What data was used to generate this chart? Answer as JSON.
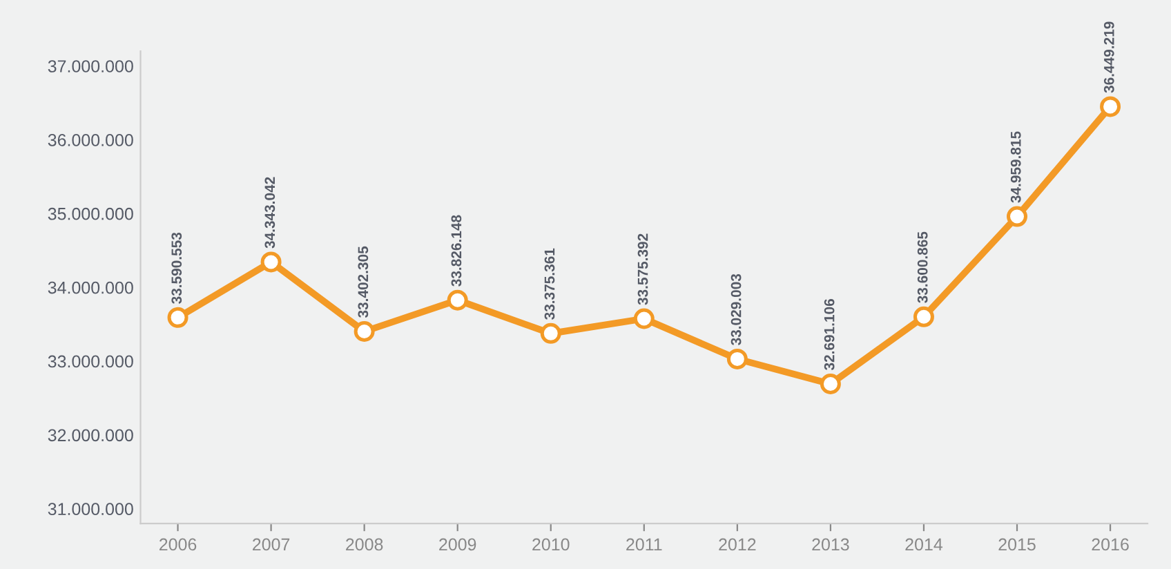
{
  "chart_data": {
    "type": "line",
    "categories": [
      "2006",
      "2007",
      "2008",
      "2009",
      "2010",
      "2011",
      "2012",
      "2013",
      "2014",
      "2015",
      "2016"
    ],
    "series": [
      {
        "color": "#f39a26",
        "values": [
          33590553,
          34343042,
          33402305,
          33826148,
          33375361,
          33575392,
          33029003,
          32691106,
          33600865,
          34959815,
          36449219
        ],
        "value_labels": [
          "33.590.553",
          "34.343.042",
          "33.402.305",
          "33.826.148",
          "33.375.361",
          "33.575.392",
          "33.029.003",
          "32.691.106",
          "33.600.865",
          "34.959.815",
          "36.449.219"
        ]
      }
    ],
    "ylim": [
      30800000,
      37200000
    ],
    "yticks": [
      {
        "value": 31000000,
        "label": "31.000.000"
      },
      {
        "value": 32000000,
        "label": "32.000.000"
      },
      {
        "value": 33000000,
        "label": "33.000.000"
      },
      {
        "value": 34000000,
        "label": "34.000.000"
      },
      {
        "value": 35000000,
        "label": "35.000.000"
      },
      {
        "value": 36000000,
        "label": "36.000.000"
      },
      {
        "value": 37000000,
        "label": "37.000.000"
      }
    ],
    "marker": "circle",
    "line_style": "solid",
    "grid": false,
    "legend": false
  }
}
